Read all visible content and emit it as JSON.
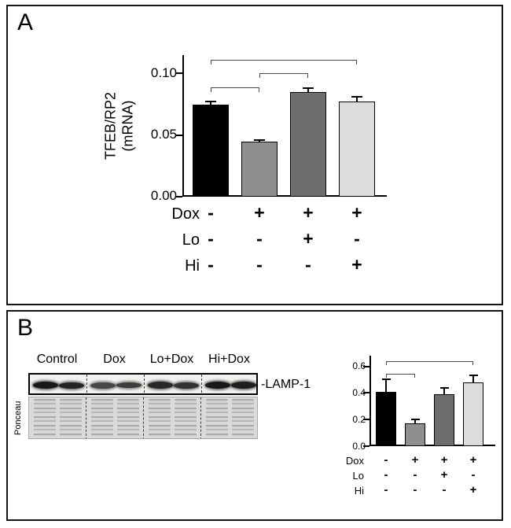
{
  "figure": {
    "panelA": {
      "label": "A",
      "ylabel_line1": "TFEB/RP2",
      "ylabel_line2": "(mRNA)"
    },
    "panelB": {
      "label": "B",
      "blot": {
        "lane_labels": [
          "Control",
          "Dox",
          "Lo+Dox",
          "Hi+Dox"
        ],
        "band_label": "-LAMP-1",
        "stain_label": "Ponceau"
      }
    }
  },
  "treatments": {
    "rows": [
      {
        "label": "Dox",
        "signs": [
          "-",
          "+",
          "+",
          "+"
        ]
      },
      {
        "label": "Lo",
        "signs": [
          "-",
          "-",
          "+",
          "-"
        ]
      },
      {
        "label": "Hi",
        "signs": [
          "-",
          "-",
          "-",
          "+"
        ]
      }
    ]
  },
  "chart_data": [
    {
      "id": "panelA-mRNA",
      "type": "bar",
      "title": "",
      "ylabel": "TFEB/RP2 (mRNA)",
      "categories": [
        "Control",
        "Dox",
        "Lo+Dox",
        "Hi+Dox"
      ],
      "values": [
        0.075,
        0.045,
        0.085,
        0.077
      ],
      "errors": [
        0.002,
        0.001,
        0.003,
        0.004
      ],
      "bar_colors": [
        "#000000",
        "#8f8f8f",
        "#6d6d6d",
        "#dcdcdc"
      ],
      "yticks": [
        0,
        0.05,
        0.1
      ],
      "ytick_labels": [
        "0.00",
        "0.05",
        "0.10"
      ],
      "ylim": [
        0,
        0.115
      ],
      "grid": false,
      "legend": false,
      "brackets": [
        {
          "from": 0,
          "to": 1,
          "y": 0.089
        },
        {
          "from": 1,
          "to": 2,
          "y": 0.1
        },
        {
          "from": 0,
          "to": 3,
          "y": 0.111
        }
      ],
      "x_axis_matrix": "treatments"
    },
    {
      "id": "panelB-LAMP1",
      "type": "bar",
      "title": "",
      "ylabel": "",
      "categories": [
        "Control",
        "Dox",
        "Lo+Dox",
        "Hi+Dox"
      ],
      "values": [
        0.41,
        0.17,
        0.39,
        0.48
      ],
      "errors": [
        0.09,
        0.03,
        0.05,
        0.05
      ],
      "bar_colors": [
        "#000000",
        "#8f8f8f",
        "#6d6d6d",
        "#dcdcdc"
      ],
      "yticks": [
        0,
        0.2,
        0.4,
        0.6
      ],
      "ytick_labels": [
        "0.0",
        "0.2",
        "0.4",
        "0.6"
      ],
      "ylim": [
        0,
        0.68
      ],
      "grid": false,
      "legend": false,
      "brackets": [
        {
          "from": 0,
          "to": 1,
          "y": 0.545
        },
        {
          "from": 0,
          "to": 3,
          "y": 0.64
        }
      ],
      "x_axis_matrix": "treatments"
    }
  ]
}
